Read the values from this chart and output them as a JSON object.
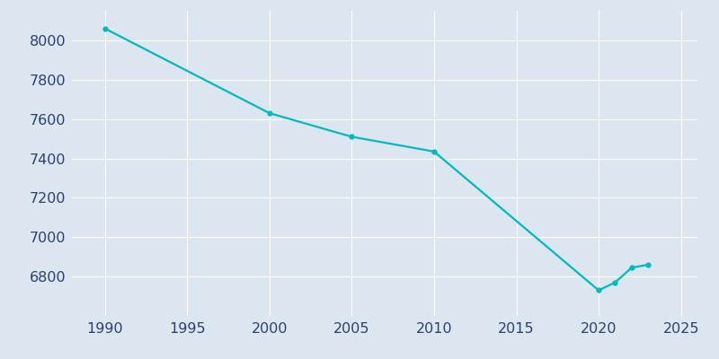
{
  "years": [
    1990,
    2000,
    2005,
    2010,
    2020,
    2021,
    2022,
    2023
  ],
  "population": [
    8060,
    7630,
    7510,
    7435,
    6730,
    6770,
    6845,
    6860
  ],
  "line_color": "#00BABA",
  "marker": "o",
  "marker_size": 3.5,
  "line_width": 1.6,
  "background_color": "#dce6f0",
  "plot_background_color": "#dce6f0",
  "grid_color": "#ffffff",
  "xlim": [
    1988,
    2026
  ],
  "ylim": [
    6600,
    8150
  ],
  "xticks": [
    1990,
    1995,
    2000,
    2005,
    2010,
    2015,
    2020,
    2025
  ],
  "yticks": [
    6800,
    7000,
    7200,
    7400,
    7600,
    7800,
    8000
  ],
  "tick_color": "#2e3f6e",
  "tick_fontsize": 11.5,
  "spine_visible": false
}
